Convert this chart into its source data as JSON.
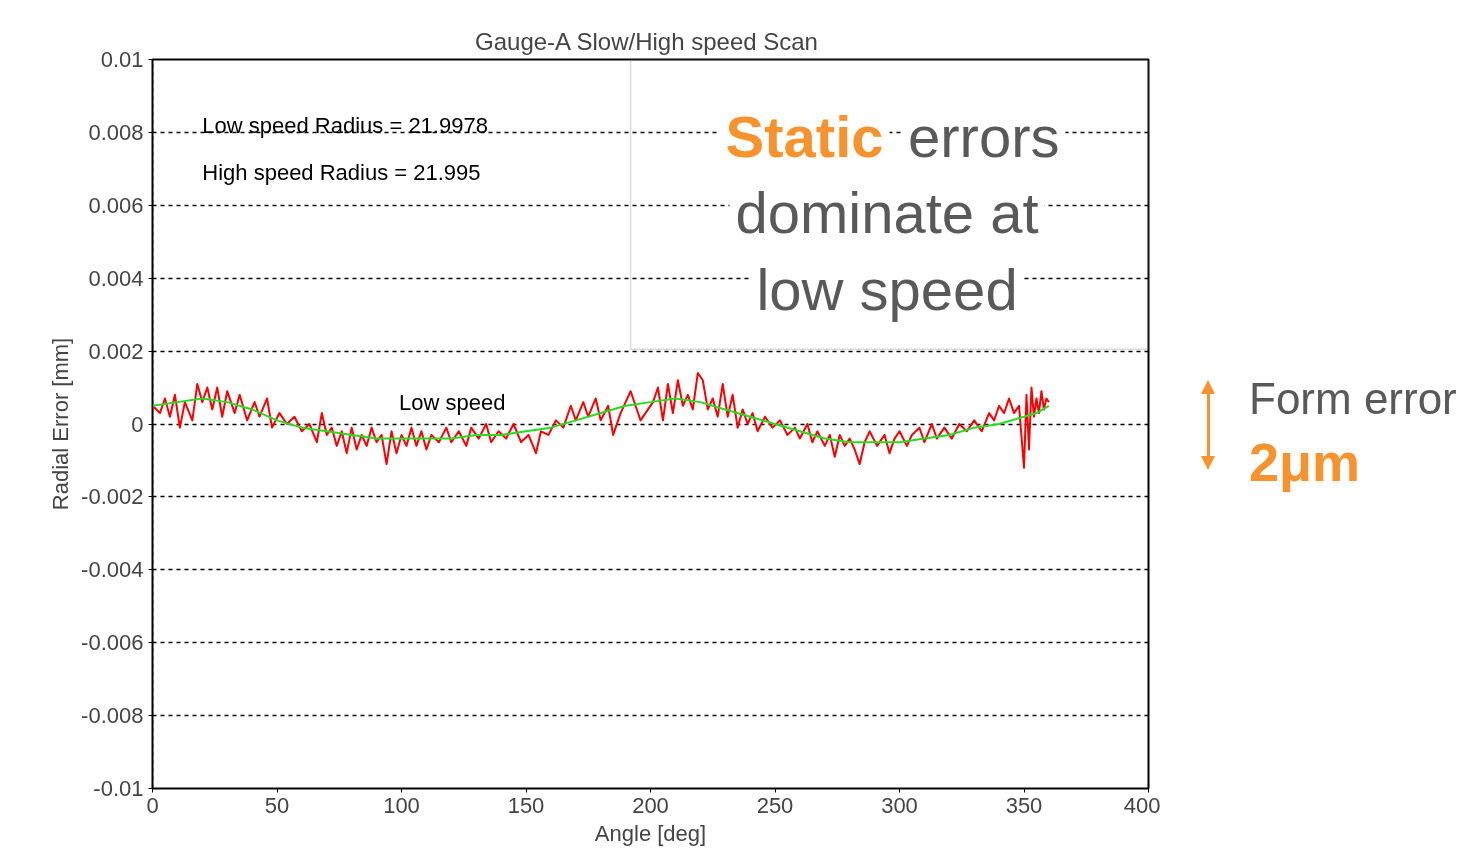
{
  "chart_data": {
    "type": "line",
    "title": "Gauge-A  Slow/High speed Scan",
    "xlabel": "Angle [deg]",
    "ylabel": "Radial Error [mm]",
    "xlim": [
      0,
      400
    ],
    "xticks": [
      0,
      50,
      100,
      150,
      200,
      250,
      300,
      350,
      400
    ],
    "ylim": [
      -0.01,
      0.01
    ],
    "yticks": [
      -0.01,
      -0.008,
      -0.006,
      -0.004,
      -0.002,
      0,
      0.002,
      0.004,
      0.006,
      0.008,
      0.01
    ],
    "grid": true,
    "line_style": "solid",
    "marker": "none",
    "series": [
      {
        "color": "#ff0000",
        "x": [
          0,
          3,
          5,
          7,
          9,
          11,
          13,
          16,
          18,
          20,
          22,
          24,
          26,
          28,
          30,
          33,
          35,
          38,
          41,
          43,
          46,
          48,
          51,
          54,
          57,
          60,
          63,
          66,
          68,
          70,
          72,
          74,
          76,
          78,
          80,
          82,
          84,
          86,
          88,
          90,
          92,
          94,
          96,
          98,
          100,
          102,
          104,
          106,
          108,
          110,
          112,
          115,
          118,
          120,
          123,
          126,
          128,
          131,
          134,
          136,
          139,
          142,
          145,
          148,
          151,
          154,
          156,
          159,
          162,
          165,
          168,
          170,
          173,
          175,
          178,
          180,
          183,
          185,
          188,
          190,
          192,
          194,
          196,
          199,
          201,
          203,
          205,
          207,
          209,
          211,
          213,
          215,
          217,
          219,
          221,
          223,
          225,
          227,
          229,
          231,
          233,
          235,
          237,
          239,
          241,
          243,
          246,
          249,
          252,
          255,
          258,
          260,
          263,
          265,
          267,
          270,
          272,
          274,
          276,
          278,
          280,
          282,
          284,
          286,
          288,
          291,
          294,
          296,
          298,
          300,
          303,
          305,
          308,
          310,
          313,
          315,
          318,
          321,
          324,
          327,
          330,
          333,
          336,
          338,
          340,
          342,
          344,
          346,
          348,
          350,
          351,
          352,
          353,
          354,
          355,
          356,
          357,
          358,
          359,
          360
        ],
        "values": [
          0.0005,
          0.0003,
          0.0007,
          0.0002,
          0.0008,
          -0.0001,
          0.0006,
          0.0001,
          0.0011,
          0.0006,
          0.001,
          0.0004,
          0.001,
          0.0002,
          0.0009,
          0.0003,
          0.0008,
          0.0001,
          0.0006,
          0.0002,
          0.0007,
          -0.0001,
          0.0003,
          0.0,
          0.0002,
          -0.0002,
          0.0,
          -0.0005,
          0.0003,
          -0.0003,
          -0.0001,
          -0.0006,
          -0.0002,
          -0.0008,
          -0.0001,
          -0.0007,
          -0.0003,
          -0.0006,
          -0.0001,
          -0.0005,
          -0.0003,
          -0.0011,
          -0.0002,
          -0.0008,
          -0.0003,
          -0.0006,
          -0.0001,
          -0.0006,
          -0.0002,
          -0.0007,
          -0.0003,
          -0.0005,
          -0.0001,
          -0.0005,
          -0.0002,
          -0.0006,
          -0.0001,
          -0.0004,
          0.0,
          -0.0005,
          -0.0002,
          -0.0004,
          0.0,
          -0.0005,
          -0.0003,
          -0.0008,
          -0.0002,
          -0.0003,
          0.0001,
          -0.0001,
          0.0005,
          0.0001,
          0.0006,
          0.0002,
          0.0007,
          0.0001,
          0.0005,
          -0.0003,
          0.0003,
          0.0006,
          0.0009,
          0.0005,
          0.0001,
          0.0004,
          0.0006,
          0.001,
          0.0001,
          0.0011,
          0.0003,
          0.0012,
          0.0005,
          0.0008,
          0.0004,
          0.0014,
          0.0012,
          0.0004,
          0.0007,
          0.0002,
          0.0011,
          0.0002,
          0.0008,
          -0.0001,
          0.0004,
          0.0,
          0.0003,
          -0.0002,
          0.0002,
          -0.0001,
          0.0001,
          -0.0003,
          -0.0001,
          -0.0004,
          0.0,
          -0.0005,
          -0.0002,
          -0.0006,
          -0.0003,
          -0.0009,
          -0.0003,
          -0.0006,
          -0.0004,
          -0.0007,
          -0.0011,
          -0.0005,
          -0.0002,
          -0.0006,
          -0.0003,
          -0.0008,
          -0.0004,
          -0.0002,
          -0.0006,
          -0.0003,
          -0.0001,
          -0.0005,
          0.0,
          -0.0004,
          -0.0001,
          -0.0004,
          0.0,
          -0.0002,
          0.0001,
          -0.0002,
          0.0003,
          0.0001,
          0.0005,
          0.0003,
          0.0007,
          0.0003,
          0.0005,
          -0.0012,
          0.0008,
          -0.0007,
          0.001,
          0.0002,
          0.0007,
          0.0003,
          0.0009,
          0.0004,
          0.0007,
          0.0006
        ]
      },
      {
        "color": "#22dd22",
        "x": [
          0,
          10,
          20,
          30,
          40,
          50,
          60,
          70,
          80,
          90,
          100,
          110,
          120,
          130,
          140,
          150,
          160,
          170,
          180,
          190,
          200,
          210,
          220,
          230,
          240,
          250,
          260,
          270,
          280,
          290,
          300,
          310,
          320,
          330,
          340,
          350,
          355,
          360
        ],
        "values": [
          0.0005,
          0.0006,
          0.0007,
          0.0006,
          0.0004,
          0.0001,
          -0.0001,
          -0.0002,
          -0.0003,
          -0.0004,
          -0.0004,
          -0.0004,
          -0.0004,
          -0.0003,
          -0.0003,
          -0.0002,
          -0.0001,
          0.0001,
          0.0003,
          0.0005,
          0.0006,
          0.0007,
          0.0006,
          0.0004,
          0.0002,
          0.0,
          -0.0002,
          -0.0004,
          -0.0005,
          -0.0005,
          -0.0005,
          -0.0004,
          -0.0003,
          -0.0001,
          0.0,
          0.0002,
          0.0003,
          0.0005
        ]
      }
    ],
    "annotations": [
      "Low speed Radius = 21.9978",
      "High speed Radius = 21.995",
      "Low speed",
      "Static errors\ndominate at\nlow speed",
      "Form error",
      "2μm"
    ]
  }
}
